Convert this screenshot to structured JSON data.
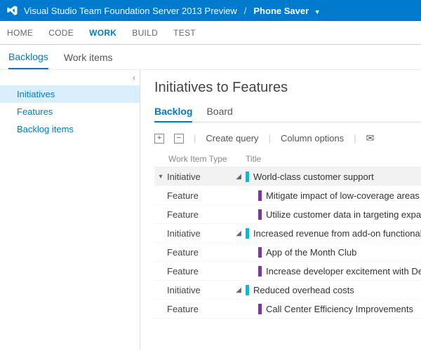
{
  "topbar": {
    "product": "Visual Studio Team Foundation Server 2013 Preview",
    "project": "Phone Saver"
  },
  "hubs": {
    "items": [
      "HOME",
      "CODE",
      "WORK",
      "BUILD",
      "TEST"
    ],
    "activeIndex": 2
  },
  "subnav": {
    "items": [
      "Backlogs",
      "Work items"
    ],
    "activeIndex": 0
  },
  "sidebar": {
    "items": [
      "Initiatives",
      "Features",
      "Backlog items"
    ],
    "selectedIndex": 0
  },
  "page": {
    "title": "Initiatives to Features"
  },
  "viewtabs": {
    "items": [
      "Backlog",
      "Board"
    ],
    "activeIndex": 0
  },
  "toolbar": {
    "createQuery": "Create query",
    "columnOptions": "Column options"
  },
  "grid": {
    "columns": {
      "type": "Work Item Type",
      "title": "Title"
    },
    "rows": [
      {
        "kind": "initiative",
        "type": "Initiative",
        "title": "World-class customer support",
        "selected": true,
        "expander": true,
        "outerTwisty": true
      },
      {
        "kind": "feature",
        "type": "Feature",
        "title": "Mitigate impact of low-coverage areas"
      },
      {
        "kind": "feature",
        "type": "Feature",
        "title": "Utilize customer data in targeting expansion"
      },
      {
        "kind": "initiative",
        "type": "Initiative",
        "title": "Increased revenue from add-on functionality",
        "expander": true
      },
      {
        "kind": "feature",
        "type": "Feature",
        "title": "App of the Month Club"
      },
      {
        "kind": "feature",
        "type": "Feature",
        "title": "Increase developer excitement with Develope"
      },
      {
        "kind": "initiative",
        "type": "Initiative",
        "title": "Reduced overhead costs",
        "expander": true
      },
      {
        "kind": "feature",
        "type": "Feature",
        "title": "Call Center Efficiency Improvements"
      }
    ]
  },
  "colors": {
    "accent": "#007acc",
    "initiative": "#19b4c7",
    "feature": "#773b93"
  }
}
